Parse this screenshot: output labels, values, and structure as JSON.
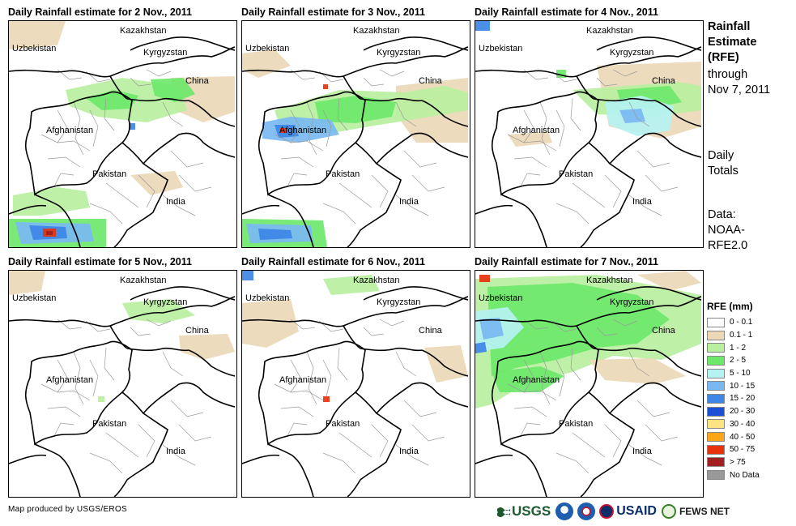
{
  "panels": [
    {
      "title": "Daily Rainfall estimate for 2 Nov., 2011",
      "day": 2
    },
    {
      "title": "Daily Rainfall estimate for 3 Nov., 2011",
      "day": 3
    },
    {
      "title": "Daily Rainfall estimate for 4 Nov., 2011",
      "day": 4
    },
    {
      "title": "Daily Rainfall estimate for 5 Nov., 2011",
      "day": 5
    },
    {
      "title": "Daily Rainfall estimate for 6 Nov., 2011",
      "day": 6
    },
    {
      "title": "Daily Rainfall estimate for 7 Nov., 2011",
      "day": 7
    }
  ],
  "map_labels": {
    "kazakhstan": "Kazakhstan",
    "uzbekistan": "Uzbekistan",
    "kyrgyzstan": "Kyrgyzstan",
    "china": "China",
    "afghanistan": "Afghanistan",
    "pakistan": "Pakistan",
    "india": "India"
  },
  "side": {
    "title_line1": "Rainfall",
    "title_line2": "Estimate",
    "title_line3": "(RFE)",
    "through_line1": "through",
    "through_line2": "Nov 7, 2011",
    "daily_line1": "Daily",
    "daily_line2": "Totals",
    "data_line1": "Data:",
    "data_line2": "NOAA-",
    "data_line3": "RFE2.0"
  },
  "legend": {
    "title": "RFE (mm)",
    "items": [
      {
        "label": "0 - 0.1",
        "color": "#ffffff"
      },
      {
        "label": "0.1 - 1",
        "color": "#ead8b6"
      },
      {
        "label": "1 - 2",
        "color": "#b8f0a0"
      },
      {
        "label": "2 - 5",
        "color": "#6ee86b"
      },
      {
        "label": "5 - 10",
        "color": "#b5f2f2"
      },
      {
        "label": "10 - 15",
        "color": "#7ab8f2"
      },
      {
        "label": "15 - 20",
        "color": "#3d86e6"
      },
      {
        "label": "20 - 30",
        "color": "#1b4fd6"
      },
      {
        "label": "30 - 40",
        "color": "#fde483"
      },
      {
        "label": "40 - 50",
        "color": "#fba518"
      },
      {
        "label": "50 - 75",
        "color": "#e8320c"
      },
      {
        "label": "> 75",
        "color": "#a3201f"
      },
      {
        "label": "No Data",
        "color": "#999999"
      }
    ]
  },
  "credit": "Map produced by USGS/EROS",
  "logos": {
    "usgs": "USGS",
    "usaid": "USAID",
    "fews": "FEWS NET"
  }
}
